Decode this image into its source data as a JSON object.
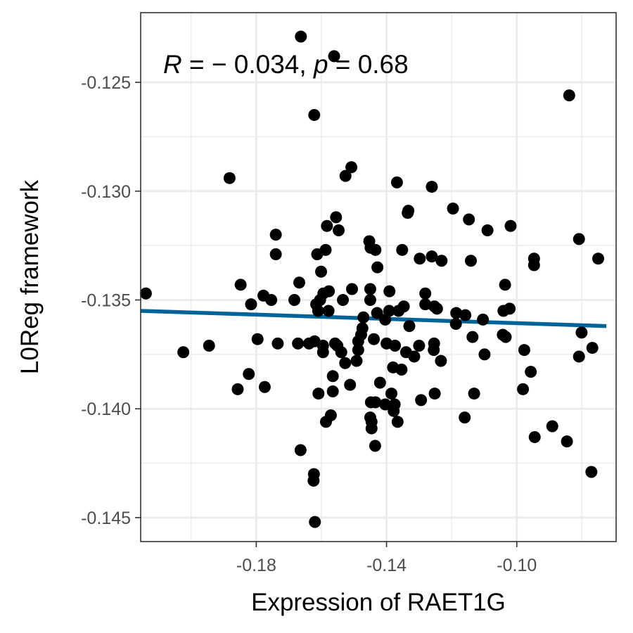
{
  "chart_data": {
    "type": "scatter",
    "title": "",
    "xlabel": "Expression of RAET1G",
    "ylabel": "L0Reg framework",
    "xlim": [
      -0.2155,
      -0.0695
    ],
    "ylim": [
      -0.1461,
      -0.1218
    ],
    "x_major_ticks": [
      -0.18,
      -0.14,
      -0.1
    ],
    "x_tick_labels": [
      "-0.18",
      "-0.14",
      "-0.10"
    ],
    "x_minor_ticks": [
      -0.2,
      -0.16,
      -0.12,
      -0.08
    ],
    "y_major_ticks": [
      -0.125,
      -0.13,
      -0.135,
      -0.14,
      -0.145
    ],
    "y_tick_labels": [
      "-0.125",
      "-0.130",
      "-0.135",
      "-0.140",
      "-0.145"
    ],
    "y_minor_ticks": [
      -0.1275,
      -0.1325,
      -0.1375,
      -0.1425
    ],
    "grid": true,
    "legend": "none",
    "annotation": {
      "r_symbol": "R",
      "equals": " = ",
      "r_value": "− 0.034",
      "separator": ", ",
      "p_symbol": "p",
      "p_value": "0.68"
    },
    "regression_line": {
      "color": "#00639a",
      "x": [
        -0.2155,
        -0.0725
      ],
      "y": [
        -0.1355,
        -0.1362
      ]
    },
    "point_color": "#000000",
    "points": [
      [
        -0.1663,
        -0.1229
      ],
      [
        -0.1561,
        -0.1238
      ],
      [
        -0.0839,
        -0.1256
      ],
      [
        -0.1622,
        -0.1265
      ],
      [
        -0.1508,
        -0.1289
      ],
      [
        -0.1526,
        -0.1293
      ],
      [
        -0.1882,
        -0.1294
      ],
      [
        -0.1368,
        -0.1296
      ],
      [
        -0.1261,
        -0.1298
      ],
      [
        -0.1333,
        -0.1309
      ],
      [
        -0.1335,
        -0.131
      ],
      [
        -0.1196,
        -0.1308
      ],
      [
        -0.1555,
        -0.1312
      ],
      [
        -0.1147,
        -0.1313
      ],
      [
        -0.1583,
        -0.1316
      ],
      [
        -0.1547,
        -0.1318
      ],
      [
        -0.1019,
        -0.1316
      ],
      [
        -0.109,
        -0.1318
      ],
      [
        -0.174,
        -0.132
      ],
      [
        -0.0809,
        -0.1322
      ],
      [
        -0.1453,
        -0.1323
      ],
      [
        -0.1449,
        -0.1326
      ],
      [
        -0.1434,
        -0.1327
      ],
      [
        -0.1352,
        -0.1327
      ],
      [
        -0.1587,
        -0.1327
      ],
      [
        -0.1613,
        -0.1329
      ],
      [
        -0.174,
        -0.1329
      ],
      [
        -0.1298,
        -0.1331
      ],
      [
        -0.1261,
        -0.133
      ],
      [
        -0.1231,
        -0.1332
      ],
      [
        -0.1141,
        -0.1332
      ],
      [
        -0.0947,
        -0.1331
      ],
      [
        -0.075,
        -0.1331
      ],
      [
        -0.0947,
        -0.1334
      ],
      [
        -0.1428,
        -0.1335
      ],
      [
        -0.1601,
        -0.1337
      ],
      [
        -0.1668,
        -0.1342
      ],
      [
        -0.1848,
        -0.1343
      ],
      [
        -0.1506,
        -0.1345
      ],
      [
        -0.145,
        -0.1345
      ],
      [
        -0.1391,
        -0.1346
      ],
      [
        -0.1577,
        -0.1346
      ],
      [
        -0.1594,
        -0.1347
      ],
      [
        -0.1036,
        -0.1343
      ],
      [
        -0.2139,
        -0.1347
      ],
      [
        -0.1778,
        -0.1348
      ],
      [
        -0.1754,
        -0.135
      ],
      [
        -0.1683,
        -0.135
      ],
      [
        -0.1281,
        -0.1347
      ],
      [
        -0.1604,
        -0.135
      ],
      [
        -0.1534,
        -0.135
      ],
      [
        -0.145,
        -0.135
      ],
      [
        -0.1347,
        -0.1353
      ],
      [
        -0.1816,
        -0.1352
      ],
      [
        -0.1616,
        -0.1352
      ],
      [
        -0.1253,
        -0.1353
      ],
      [
        -0.1281,
        -0.1352
      ],
      [
        -0.1363,
        -0.1355
      ],
      [
        -0.1245,
        -0.1354
      ],
      [
        -0.1578,
        -0.1355
      ],
      [
        -0.161,
        -0.1355
      ],
      [
        -0.1429,
        -0.1356
      ],
      [
        -0.1392,
        -0.1355
      ],
      [
        -0.1186,
        -0.1356
      ],
      [
        -0.1022,
        -0.1354
      ],
      [
        -0.1041,
        -0.1355
      ],
      [
        -0.1158,
        -0.1357
      ],
      [
        -0.1471,
        -0.1358
      ],
      [
        -0.1404,
        -0.1359
      ],
      [
        -0.1104,
        -0.1359
      ],
      [
        -0.1187,
        -0.1361
      ],
      [
        -0.133,
        -0.1362
      ],
      [
        -0.1474,
        -0.1363
      ],
      [
        -0.1439,
        -0.1368
      ],
      [
        -0.1478,
        -0.1366
      ],
      [
        -0.1487,
        -0.1369
      ],
      [
        -0.1043,
        -0.1366
      ],
      [
        -0.1034,
        -0.1367
      ],
      [
        -0.1136,
        -0.1367
      ],
      [
        -0.0801,
        -0.1365
      ],
      [
        -0.1558,
        -0.137
      ],
      [
        -0.1734,
        -0.137
      ],
      [
        -0.1796,
        -0.1368
      ],
      [
        -0.1595,
        -0.1371
      ],
      [
        -0.1672,
        -0.137
      ],
      [
        -0.1638,
        -0.137
      ],
      [
        -0.1621,
        -0.1369
      ],
      [
        -0.1551,
        -0.1371
      ],
      [
        -0.14,
        -0.137
      ],
      [
        -0.1374,
        -0.1371
      ],
      [
        -0.13,
        -0.1371
      ],
      [
        -0.1254,
        -0.137
      ],
      [
        -0.1255,
        -0.1373
      ],
      [
        -0.1539,
        -0.1374
      ],
      [
        -0.1487,
        -0.1373
      ],
      [
        -0.1527,
        -0.1379
      ],
      [
        -0.1492,
        -0.1378
      ],
      [
        -0.1595,
        -0.1374
      ],
      [
        -0.134,
        -0.1374
      ],
      [
        -0.1315,
        -0.1376
      ],
      [
        -0.1233,
        -0.1378
      ],
      [
        -0.1099,
        -0.1375
      ],
      [
        -0.2024,
        -0.1374
      ],
      [
        -0.1945,
        -0.1371
      ],
      [
        -0.0977,
        -0.1373
      ],
      [
        -0.0768,
        -0.1372
      ],
      [
        -0.0809,
        -0.1376
      ],
      [
        -0.1354,
        -0.1382
      ],
      [
        -0.138,
        -0.1381
      ],
      [
        -0.1565,
        -0.1385
      ],
      [
        -0.1823,
        -0.1384
      ],
      [
        -0.142,
        -0.1388
      ],
      [
        -0.1512,
        -0.1389
      ],
      [
        -0.1774,
        -0.139
      ],
      [
        -0.1857,
        -0.1391
      ],
      [
        -0.1565,
        -0.1392
      ],
      [
        -0.1609,
        -0.1393
      ],
      [
        -0.1385,
        -0.1393
      ],
      [
        -0.1252,
        -0.1393
      ],
      [
        -0.1131,
        -0.1393
      ],
      [
        -0.0957,
        -0.1383
      ],
      [
        -0.0981,
        -0.1391
      ],
      [
        -0.1294,
        -0.1396
      ],
      [
        -0.1448,
        -0.1397
      ],
      [
        -0.1434,
        -0.1397
      ],
      [
        -0.1404,
        -0.1398
      ],
      [
        -0.145,
        -0.1404
      ],
      [
        -0.1375,
        -0.1398
      ],
      [
        -0.1571,
        -0.1403
      ],
      [
        -0.1586,
        -0.1406
      ],
      [
        -0.1446,
        -0.1406
      ],
      [
        -0.1446,
        -0.1409
      ],
      [
        -0.1366,
        -0.1406
      ],
      [
        -0.1378,
        -0.1401
      ],
      [
        -0.116,
        -0.1404
      ],
      [
        -0.0891,
        -0.1408
      ],
      [
        -0.0945,
        -0.1413
      ],
      [
        -0.0846,
        -0.1415
      ],
      [
        -0.1435,
        -0.1417
      ],
      [
        -0.1664,
        -0.1419
      ],
      [
        -0.1623,
        -0.143
      ],
      [
        -0.1624,
        -0.1433
      ],
      [
        -0.0771,
        -0.1429
      ],
      [
        -0.162,
        -0.1452
      ]
    ]
  }
}
